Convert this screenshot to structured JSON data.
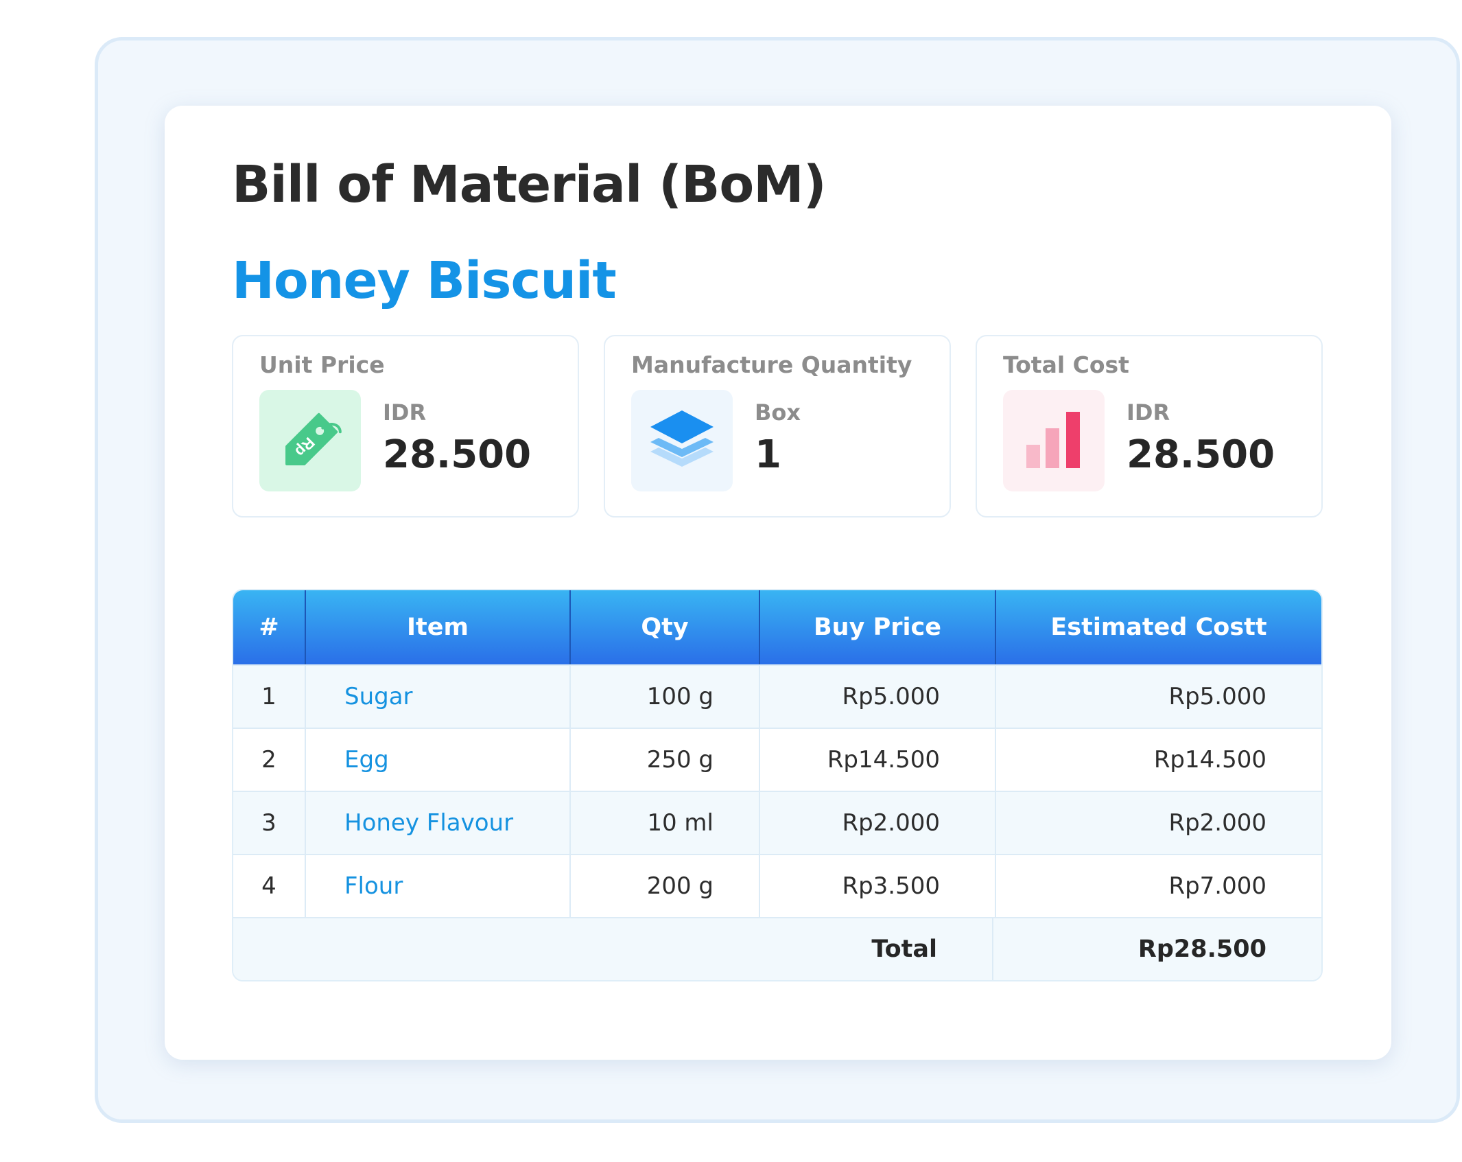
{
  "page": {
    "title": "Bill of Material (BoM)",
    "product_name": "Honey Biscuit"
  },
  "stats": [
    {
      "label": "Unit Price",
      "sub": "IDR",
      "value": "28.500",
      "icon": "price-tag-icon",
      "tile_color": "#d9f7e6",
      "icon_color": "#48c98a",
      "icon_text": "Rp"
    },
    {
      "label": "Manufacture Quantity",
      "sub": "Box",
      "value": "1",
      "icon": "layers-icon",
      "tile_color": "#eef6fd",
      "icon_color": "#1a8ff0"
    },
    {
      "label": "Total Cost",
      "sub": "IDR",
      "value": "28.500",
      "icon": "bar-chart-icon",
      "tile_color": "#fdf0f3",
      "icon_color": "#ee3f6b"
    }
  ],
  "table": {
    "headers": {
      "num": "#",
      "item": "Item",
      "qty": "Qty",
      "buy_price": "Buy Price",
      "estimated_cost": "Estimated Costt"
    },
    "rows": [
      {
        "num": "1",
        "item": "Sugar",
        "qty": "100 g",
        "buy_price": "Rp5.000",
        "estimated_cost": "Rp5.000"
      },
      {
        "num": "2",
        "item": "Egg",
        "qty": "250 g",
        "buy_price": "Rp14.500",
        "estimated_cost": "Rp14.500"
      },
      {
        "num": "3",
        "item": "Honey Flavour",
        "qty": "10 ml",
        "buy_price": "Rp2.000",
        "estimated_cost": "Rp2.000"
      },
      {
        "num": "4",
        "item": "Flour",
        "qty": "200 g",
        "buy_price": "Rp3.500",
        "estimated_cost": "Rp7.000"
      }
    ],
    "total_label": "Total",
    "total_value": "Rp28.500"
  },
  "colors": {
    "accent": "#1493e6",
    "header_gradient_top": "#39b4f3",
    "header_gradient_bottom": "#2a6fe8"
  }
}
